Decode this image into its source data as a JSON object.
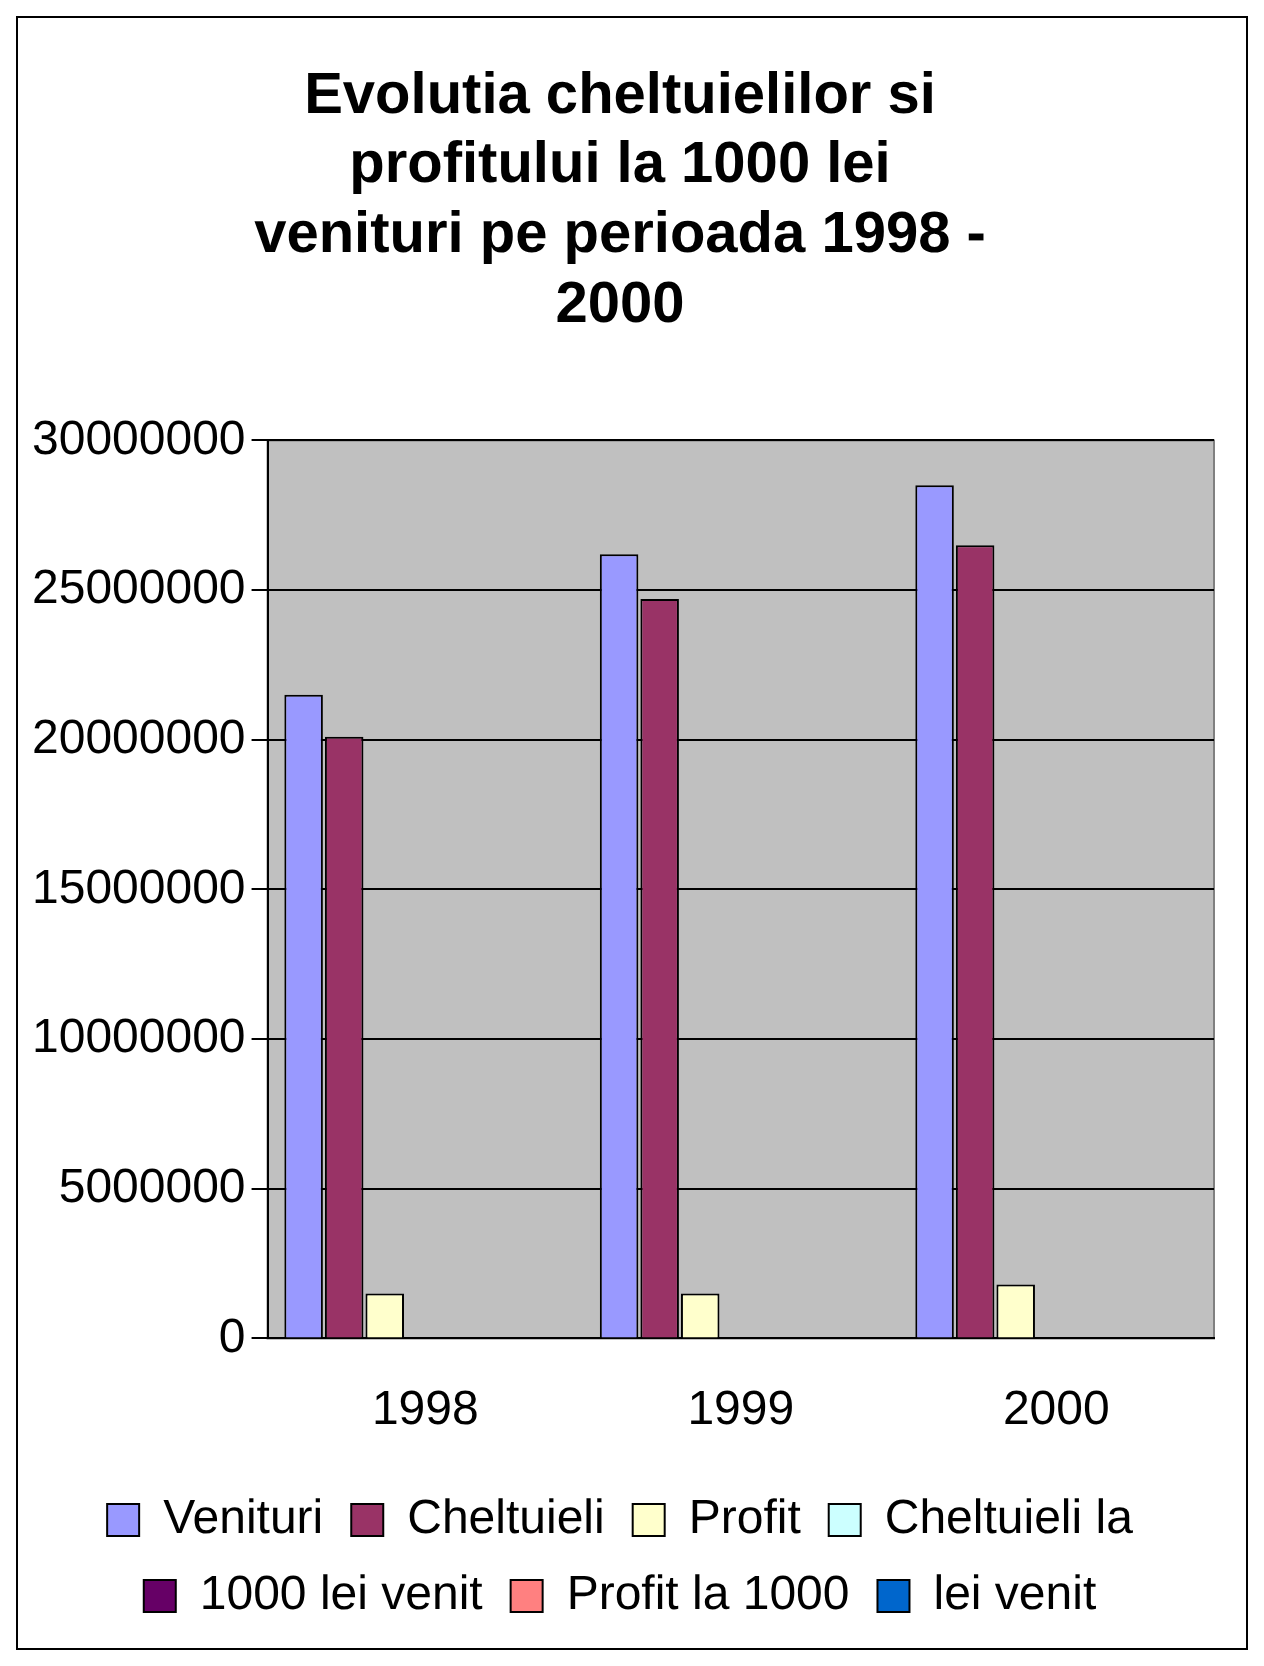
{
  "chart_data": {
    "type": "bar",
    "title": "Evolutia cheltuielilor si profitului la 1000 lei venituri pe perioada 1998 - 2000",
    "categories": [
      "1998",
      "1999",
      "2000"
    ],
    "series": [
      {
        "name": "Venituri",
        "color": "#9999ff",
        "values": [
          21500000,
          26200000,
          28500000
        ]
      },
      {
        "name": "Cheltuieli",
        "color": "#993366",
        "values": [
          20100000,
          24700000,
          26500000
        ]
      },
      {
        "name": "Profit",
        "color": "#ffffcc",
        "values": [
          1500000,
          1500000,
          1800000
        ]
      },
      {
        "name": "Cheltuieli la",
        "color": "#ccffff",
        "values": [
          0,
          0,
          0
        ]
      },
      {
        "name": "1000 lei venit",
        "color": "#660066",
        "values": [
          null,
          null,
          null
        ]
      },
      {
        "name": "Profit la 1000",
        "color": "#ff8080",
        "values": [
          0,
          0,
          0
        ]
      },
      {
        "name": "lei venit",
        "color": "#0066cc",
        "values": [
          null,
          null,
          null
        ]
      }
    ],
    "ylim": [
      0,
      30000000
    ],
    "yticks": [
      0,
      5000000,
      10000000,
      15000000,
      20000000,
      25000000,
      30000000
    ],
    "grid": "y",
    "legend": "bottom"
  }
}
